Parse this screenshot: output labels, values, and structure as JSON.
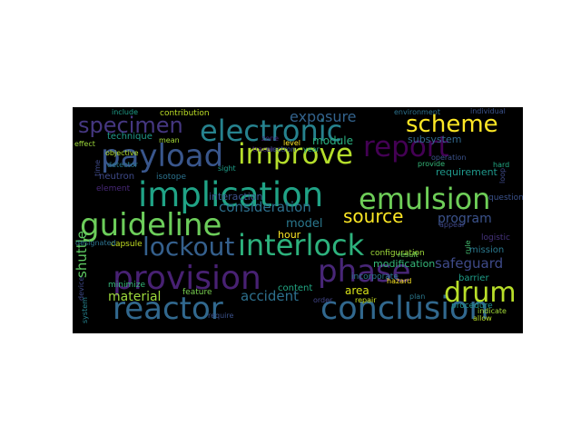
{
  "wordcloud": {
    "background": "#000000",
    "words": [
      {
        "text": "provision",
        "color": "#482173"
      },
      {
        "text": "reactor",
        "color": "#31688e"
      },
      {
        "text": "implication",
        "color": "#20a386"
      },
      {
        "text": "conclusion",
        "color": "#31688e"
      },
      {
        "text": "electronic",
        "color": "#26828e"
      },
      {
        "text": "guideline",
        "color": "#6ccd5a"
      },
      {
        "text": "payload",
        "color": "#39568c"
      },
      {
        "text": "improve",
        "color": "#b5de2b"
      },
      {
        "text": "report",
        "color": "#440154"
      },
      {
        "text": "emulsion",
        "color": "#6ece58"
      },
      {
        "text": "interlock",
        "color": "#2db27d"
      },
      {
        "text": "lockout",
        "color": "#35608d"
      },
      {
        "text": "phase",
        "color": "#482677"
      },
      {
        "text": "scheme",
        "color": "#fde725"
      },
      {
        "text": "drum",
        "color": "#b8de29"
      },
      {
        "text": "specimen",
        "color": "#453781"
      },
      {
        "text": "source",
        "color": "#fde725"
      },
      {
        "text": "exposure",
        "color": "#33638d"
      },
      {
        "text": "consideration",
        "color": "#2d708e"
      },
      {
        "text": "material",
        "color": "#9dd93b"
      },
      {
        "text": "accident",
        "color": "#2d708e"
      },
      {
        "text": "program",
        "color": "#3b528b"
      },
      {
        "text": "safeguard",
        "color": "#3e4a89"
      },
      {
        "text": "shuttle",
        "color": "#5ec962"
      },
      {
        "text": "model",
        "color": "#2a788e"
      },
      {
        "text": "module",
        "color": "#2ab07f"
      },
      {
        "text": "interaction",
        "color": "#3b528b"
      },
      {
        "text": "subsystem",
        "color": "#31688e"
      },
      {
        "text": "requirement",
        "color": "#1f988b"
      },
      {
        "text": "area",
        "color": "#d8e219"
      },
      {
        "text": "content",
        "color": "#22a884"
      },
      {
        "text": "modification",
        "color": "#35b779"
      },
      {
        "text": "mission",
        "color": "#2a788e"
      },
      {
        "text": "logistic",
        "color": "#46337e"
      },
      {
        "text": "barrier",
        "color": "#1f9e89"
      },
      {
        "text": "neutron",
        "color": "#3e4a89"
      },
      {
        "text": "technique",
        "color": "#1f9a8a"
      },
      {
        "text": "isotope",
        "color": "#2c728e"
      },
      {
        "text": "element",
        "color": "#482878"
      },
      {
        "text": "hour",
        "color": "#fde725"
      },
      {
        "text": "minimize",
        "color": "#35b779"
      },
      {
        "text": "capsule",
        "color": "#c2df23"
      },
      {
        "text": "feature",
        "color": "#7ad151"
      },
      {
        "text": "incorporate",
        "color": "#2a788e"
      },
      {
        "text": "configuration",
        "color": "#9fda3a"
      },
      {
        "text": "procedure",
        "color": "#21918c"
      },
      {
        "text": "contribution",
        "color": "#bddf26"
      },
      {
        "text": "environment",
        "color": "#2c728e"
      },
      {
        "text": "individual",
        "color": "#3b528b"
      },
      {
        "text": "include",
        "color": "#1f9e89"
      },
      {
        "text": "device",
        "color": "#3e4989"
      },
      {
        "text": "detector",
        "color": "#2a788e"
      },
      {
        "text": "system",
        "color": "#26828e"
      },
      {
        "text": "allow",
        "color": "#b8de29"
      },
      {
        "text": "indicate",
        "color": "#a2da37"
      },
      {
        "text": "electron",
        "color": "#3b528b"
      },
      {
        "text": "tracer",
        "color": "#482475"
      },
      {
        "text": "hazard",
        "color": "#fde725"
      },
      {
        "text": "repair",
        "color": "#c8e020"
      },
      {
        "text": "order",
        "color": "#414487"
      },
      {
        "text": "mean",
        "color": "#a5db36"
      },
      {
        "text": "effect",
        "color": "#9dd93b"
      },
      {
        "text": "objective",
        "color": "#b2dd2d"
      },
      {
        "text": "level",
        "color": "#fde725"
      },
      {
        "text": "question",
        "color": "#3b528b"
      },
      {
        "text": "provide",
        "color": "#35b779"
      },
      {
        "text": "operation",
        "color": "#3b528b"
      },
      {
        "text": "rule",
        "color": "#44bf70"
      },
      {
        "text": "result",
        "color": "#6ece58"
      },
      {
        "text": "appear",
        "color": "#3f4889"
      },
      {
        "text": "year",
        "color": "#22a884"
      },
      {
        "text": "require",
        "color": "#3b528b"
      },
      {
        "text": "designated",
        "color": "#2c728e"
      },
      {
        "text": "zone",
        "color": "#482677"
      },
      {
        "text": "plan",
        "color": "#2a788e"
      },
      {
        "text": "loop",
        "color": "#3e4a89"
      },
      {
        "text": "hard",
        "color": "#22a884"
      },
      {
        "text": "time",
        "color": "#3e4a89"
      },
      {
        "text": "sight",
        "color": "#1f9e89"
      }
    ]
  }
}
